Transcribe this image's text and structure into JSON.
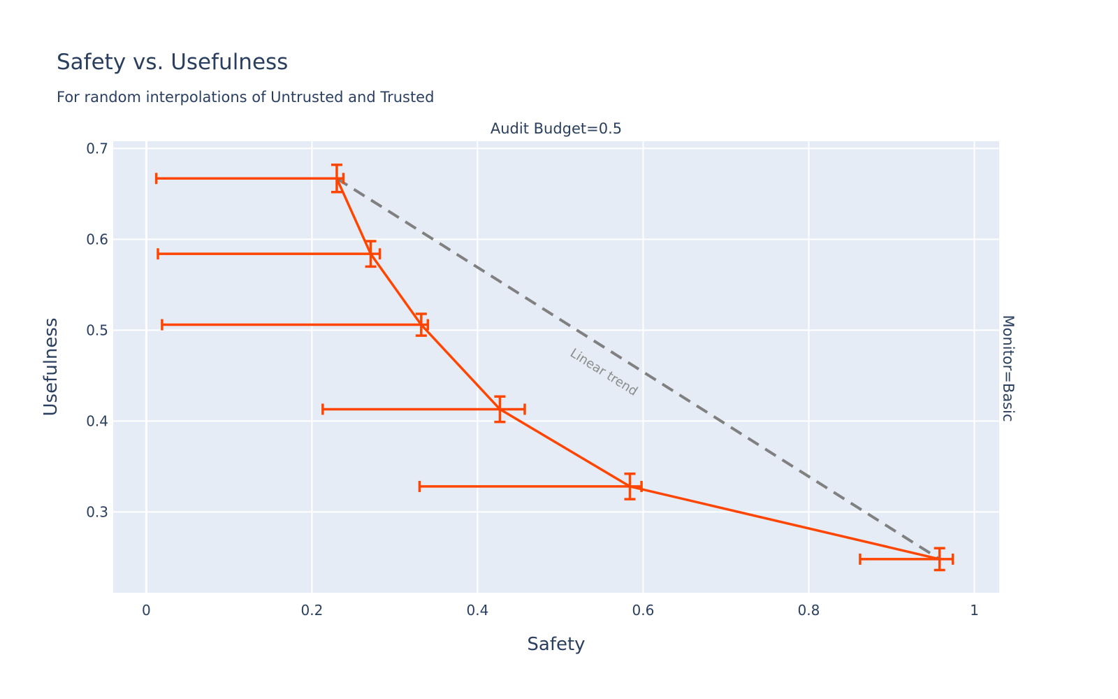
{
  "chart_data": {
    "type": "scatter",
    "title": "Safety vs. Usefulness",
    "subtitle": "For random interpolations of Untrusted and Trusted",
    "facet_col_label": "Audit Budget=0.5",
    "facet_row_label": "Monitor=Basic",
    "xlabel": "Safety",
    "ylabel": "Usefulness",
    "xlim": [
      -0.04,
      1.03
    ],
    "ylim": [
      0.211,
      0.708
    ],
    "x_ticks": [
      "0",
      "0.2",
      "0.4",
      "0.6",
      "0.8",
      "1"
    ],
    "x_tick_values": [
      0,
      0.2,
      0.4,
      0.6,
      0.8,
      1
    ],
    "y_ticks": [
      "0.3",
      "0.4",
      "0.5",
      "0.6",
      "0.7"
    ],
    "y_tick_values": [
      0.3,
      0.4,
      0.5,
      0.6,
      0.7
    ],
    "grid": true,
    "series": [
      {
        "color": "#ff4500",
        "mode": "lines+markers",
        "points": [
          {
            "x": 0.23,
            "y": 0.667,
            "x_err_minus": 0.218,
            "x_err_plus": 0.008,
            "y_err": 0.015
          },
          {
            "x": 0.271,
            "y": 0.584,
            "x_err_minus": 0.257,
            "x_err_plus": 0.011,
            "y_err": 0.014
          },
          {
            "x": 0.332,
            "y": 0.506,
            "x_err_minus": 0.313,
            "x_err_plus": 0.008,
            "y_err": 0.012
          },
          {
            "x": 0.427,
            "y": 0.413,
            "x_err_minus": 0.214,
            "x_err_plus": 0.03,
            "y_err": 0.014
          },
          {
            "x": 0.584,
            "y": 0.328,
            "x_err_minus": 0.254,
            "x_err_plus": 0.014,
            "y_err": 0.014
          },
          {
            "x": 0.958,
            "y": 0.248,
            "x_err_minus": 0.096,
            "x_err_plus": 0.016,
            "y_err": 0.012
          }
        ]
      }
    ],
    "trend_line": {
      "color": "#808080",
      "dash": "dashed",
      "x": [
        0.23,
        0.958
      ],
      "y": [
        0.667,
        0.248
      ],
      "label": "Linear trend"
    }
  }
}
